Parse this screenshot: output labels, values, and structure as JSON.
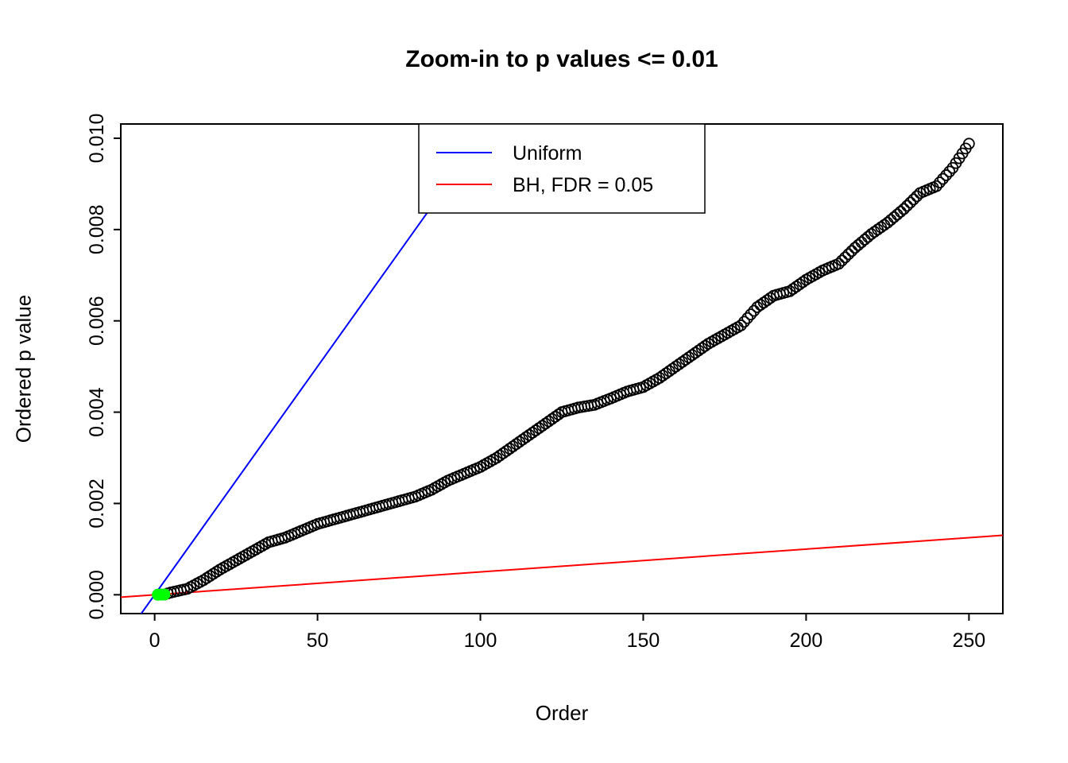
{
  "page": {
    "background": "#ffffff"
  },
  "chart_data": {
    "type": "scatter",
    "title": "Zoom-in to p values <= 0.01",
    "xlabel": "Order",
    "ylabel": "Ordered p value",
    "xlim": [
      -10.4,
      260.4
    ],
    "ylim": [
      -0.000412,
      0.010312
    ],
    "grid": false,
    "x_ticks": {
      "values": [
        0,
        50,
        100,
        150,
        200,
        250
      ],
      "labels": [
        "0",
        "50",
        "100",
        "150",
        "200",
        "250"
      ]
    },
    "y_ticks": {
      "values": [
        0,
        0.002,
        0.004,
        0.006,
        0.008,
        0.01
      ],
      "labels": [
        "0.000",
        "0.002",
        "0.004",
        "0.006",
        "0.008",
        "0.010"
      ]
    },
    "point_style": {
      "shape": "open-circle",
      "color": "#000000"
    },
    "x_description": "x value of point k is its rank order k (1..250)",
    "ordered_p_values": [
      1e-06,
      3e-06,
      6e-06,
      3e-05,
      5e-05,
      6.6e-05,
      8.2e-05,
      9.8e-05,
      0.000114,
      0.00013,
      0.000168,
      0.000206,
      0.000244,
      0.000282,
      0.00032,
      0.000366,
      0.000412,
      0.000458,
      0.000504,
      0.00055,
      0.00059,
      0.00063,
      0.00067,
      0.00071,
      0.00075,
      0.00079,
      0.00083,
      0.00087,
      0.00091,
      0.00095,
      0.00099,
      0.00103,
      0.00107,
      0.00111,
      0.00115,
      0.00117,
      0.00119,
      0.00121,
      0.00123,
      0.00125,
      0.00128,
      0.00131,
      0.00134,
      0.00137,
      0.0014,
      0.00143,
      0.00146,
      0.00149,
      0.00152,
      0.00155,
      0.00157,
      0.00159,
      0.00161,
      0.00163,
      0.00165,
      0.00167,
      0.00169,
      0.00171,
      0.00173,
      0.00175,
      0.00177,
      0.00179,
      0.00181,
      0.00183,
      0.00185,
      0.00187,
      0.00189,
      0.00191,
      0.00193,
      0.00195,
      0.00197,
      0.00199,
      0.00201,
      0.00203,
      0.00205,
      0.00207,
      0.00209,
      0.00211,
      0.00213,
      0.00215,
      0.00218,
      0.00221,
      0.00224,
      0.00227,
      0.0023,
      0.00234,
      0.00238,
      0.00242,
      0.00246,
      0.0025,
      0.00253,
      0.00256,
      0.00259,
      0.00262,
      0.00265,
      0.00268,
      0.00271,
      0.00274,
      0.00277,
      0.0028,
      0.00284,
      0.00288,
      0.00292,
      0.00296,
      0.003,
      0.00305,
      0.0031,
      0.00315,
      0.0032,
      0.00325,
      0.0033,
      0.00335,
      0.0034,
      0.00345,
      0.0035,
      0.00355,
      0.0036,
      0.00365,
      0.0037,
      0.00375,
      0.0038,
      0.00385,
      0.0039,
      0.00395,
      0.004,
      0.00402,
      0.00404,
      0.00406,
      0.00408,
      0.0041,
      0.004112,
      0.004124,
      0.004136,
      0.004148,
      0.00416,
      0.004188,
      0.004216,
      0.004244,
      0.004272,
      0.0043,
      0.00433,
      0.00436,
      0.00439,
      0.00442,
      0.00445,
      0.00447,
      0.00449,
      0.00451,
      0.00453,
      0.00455,
      0.00459,
      0.00463,
      0.00467,
      0.00471,
      0.00475,
      0.0048,
      0.00485,
      0.0049,
      0.00495,
      0.005,
      0.00505,
      0.0051,
      0.00515,
      0.0052,
      0.00525,
      0.0053,
      0.00535,
      0.0054,
      0.00545,
      0.0055,
      0.00554,
      0.00558,
      0.00562,
      0.00566,
      0.0057,
      0.00574,
      0.00578,
      0.00582,
      0.00586,
      0.0059,
      0.00598,
      0.00606,
      0.00614,
      0.00622,
      0.0063,
      0.00635,
      0.0064,
      0.00645,
      0.0065,
      0.00655,
      0.00657,
      0.00659,
      0.00661,
      0.00663,
      0.00665,
      0.0067,
      0.00675,
      0.0068,
      0.00685,
      0.0069,
      0.00694,
      0.00698,
      0.00702,
      0.00706,
      0.0071,
      0.00713,
      0.00716,
      0.00719,
      0.00722,
      0.00725,
      0.00732,
      0.00739,
      0.00746,
      0.00753,
      0.0076,
      0.00766,
      0.00772,
      0.00778,
      0.00784,
      0.0079,
      0.00795,
      0.008,
      0.00805,
      0.0081,
      0.00815,
      0.00821,
      0.00827,
      0.00833,
      0.00839,
      0.00845,
      0.00852,
      0.00859,
      0.00866,
      0.00873,
      0.0088,
      0.00883,
      0.00886,
      0.00889,
      0.00892,
      0.00895,
      0.00903,
      0.00911,
      0.00919,
      0.00927,
      0.00935,
      0.009456,
      0.009562,
      0.009668,
      0.009774,
      0.00988
    ],
    "significant": {
      "count": 3,
      "color": "#00FF00",
      "note": "BH-significant p values drawn as solid green dots"
    },
    "lines": [
      {
        "name": "uniform",
        "label": "Uniform",
        "color": "#0000FF",
        "slope": 0.0001,
        "intercept": 0
      },
      {
        "name": "bh",
        "label": "BH, FDR = 0.05",
        "color": "#FF0000",
        "slope": 5e-06,
        "intercept": 0
      }
    ],
    "legend": {
      "position": "top",
      "entries": [
        {
          "label": "Uniform",
          "color": "#0000FF"
        },
        {
          "label": "BH, FDR = 0.05",
          "color": "#FF0000"
        }
      ]
    }
  }
}
